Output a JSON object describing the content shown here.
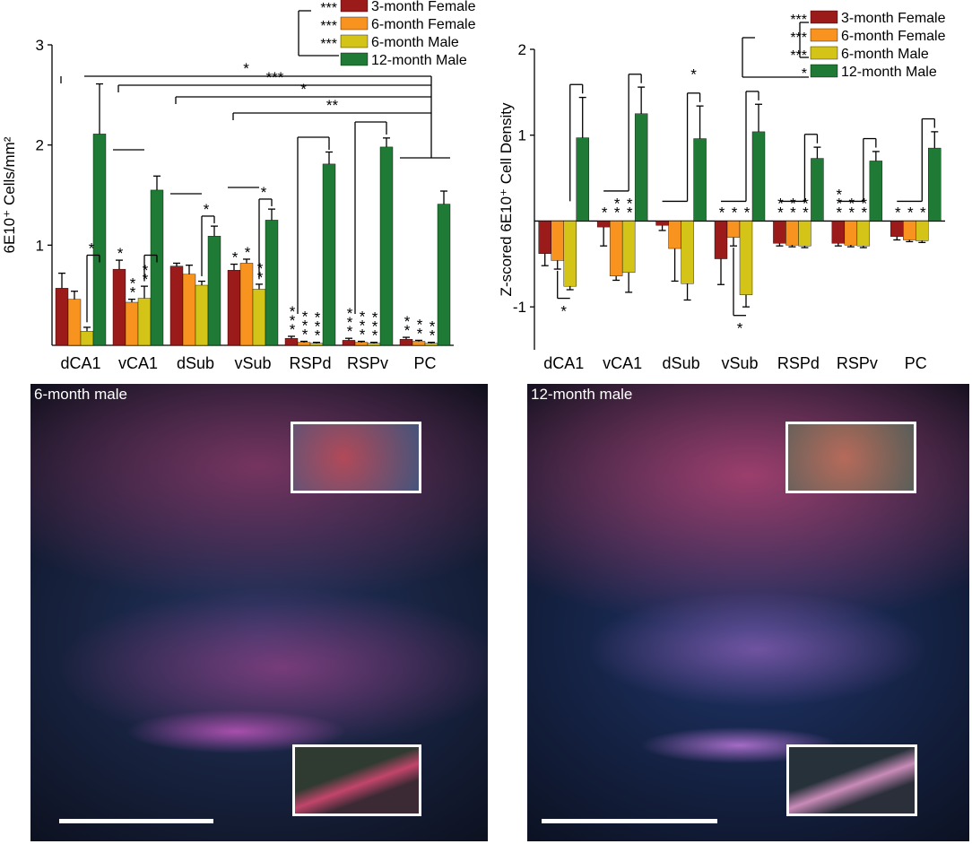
{
  "colors": {
    "3m_female": "#9b1b1b",
    "6m_female": "#f7931e",
    "6m_male": "#d4c418",
    "12m_male": "#1e7a34"
  },
  "chart_data": [
    {
      "type": "bar",
      "title": "",
      "ylabel": "6E10⁺ Cells/mm²",
      "xlabel": "",
      "ylim": [
        0,
        3
      ],
      "yticks": [
        "1",
        "2",
        "3"
      ],
      "categories": [
        "dCA1",
        "vCA1",
        "dSub",
        "vSub",
        "RSPd",
        "RSPv",
        "PC"
      ],
      "series": [
        {
          "name": "3-month Female",
          "color_key": "3m_female",
          "values": [
            0.57,
            0.76,
            0.79,
            0.75,
            0.07,
            0.05,
            0.06
          ],
          "errors": [
            0.15,
            0.09,
            0.03,
            0.06,
            0.02,
            0.02,
            0.02
          ]
        },
        {
          "name": "6-month Female",
          "color_key": "6m_female",
          "values": [
            0.46,
            0.43,
            0.71,
            0.82,
            0.03,
            0.03,
            0.04
          ],
          "errors": [
            0.08,
            0.03,
            0.09,
            0.04,
            0.01,
            0.01,
            0.01
          ]
        },
        {
          "name": "6-month Male",
          "color_key": "6m_male",
          "values": [
            0.14,
            0.47,
            0.6,
            0.56,
            0.02,
            0.02,
            0.02
          ],
          "errors": [
            0.04,
            0.12,
            0.04,
            0.05,
            0.01,
            0.01,
            0.01
          ]
        },
        {
          "name": "12-month Male",
          "color_key": "12m_male",
          "values": [
            2.11,
            1.55,
            1.09,
            1.25,
            1.81,
            1.98,
            1.41
          ],
          "errors": [
            0.5,
            0.14,
            0.1,
            0.11,
            0.12,
            0.09,
            0.13
          ]
        }
      ],
      "legend_sig": [
        "***",
        "***",
        "***",
        ""
      ],
      "bar_sig": {
        "vCA1": [
          "*",
          "**",
          "**"
        ],
        "vSub": [
          "*",
          "*",
          "**"
        ],
        "RSPd": [
          "***",
          "***",
          "***"
        ],
        "RSPv": [
          "***",
          "***",
          "***"
        ],
        "PC": [
          "**",
          "**",
          "**"
        ]
      },
      "pair_sig": {
        "dCA1": "*",
        "vCA1": "",
        "dSub": "*",
        "vSub": "*"
      },
      "group_sig": [
        "*",
        "***",
        "*",
        "**"
      ]
    },
    {
      "type": "bar",
      "title": "",
      "ylabel": "Z-scored 6E10⁺ Cell Density",
      "xlabel": "",
      "ylim": [
        -1.5,
        2
      ],
      "yticks": [
        "-1",
        "1",
        "2"
      ],
      "categories": [
        "dCA1",
        "vCA1",
        "dSub",
        "vSub",
        "RSPd",
        "RSPv",
        "PC"
      ],
      "series": [
        {
          "name": "3-month Female",
          "color_key": "3m_female",
          "values": [
            -0.38,
            -0.07,
            -0.05,
            -0.44,
            -0.26,
            -0.26,
            -0.18
          ],
          "errors": [
            0.14,
            0.22,
            0.06,
            0.3,
            0.03,
            0.03,
            0.04
          ]
        },
        {
          "name": "6-month Female",
          "color_key": "6m_female",
          "values": [
            -0.46,
            -0.64,
            -0.32,
            -0.19,
            -0.28,
            -0.28,
            -0.22
          ],
          "errors": [
            0.1,
            0.05,
            0.38,
            0.1,
            0.02,
            0.02,
            0.02
          ]
        },
        {
          "name": "6-month Male",
          "color_key": "6m_male",
          "values": [
            -0.76,
            -0.6,
            -0.73,
            -0.86,
            -0.29,
            -0.29,
            -0.23
          ],
          "errors": [
            0.04,
            0.23,
            0.19,
            0.14,
            0.02,
            0.02,
            0.02
          ]
        },
        {
          "name": "12-month Male",
          "color_key": "12m_male",
          "values": [
            0.97,
            1.25,
            0.96,
            1.04,
            0.73,
            0.7,
            0.85
          ],
          "errors": [
            0.47,
            0.31,
            0.38,
            0.32,
            0.13,
            0.11,
            0.19
          ]
        }
      ],
      "legend_sig": [
        "***",
        "***",
        "***",
        "*"
      ],
      "bar_sig": {
        "vCA1": [
          "*",
          "**",
          "**"
        ],
        "vSub": [
          "*",
          "*",
          "*"
        ],
        "RSPd": [
          "**",
          "**",
          "**"
        ],
        "RSPv": [
          "***",
          "**",
          "**"
        ],
        "PC": [
          "*",
          "*",
          "*"
        ]
      },
      "below_sig": {
        "dCA1": "*",
        "vSub": "*"
      },
      "pair_sig_top": {
        "dSub": "*"
      }
    }
  ],
  "micrographs": [
    {
      "label": "6-month male"
    },
    {
      "label": "12-month male"
    }
  ]
}
